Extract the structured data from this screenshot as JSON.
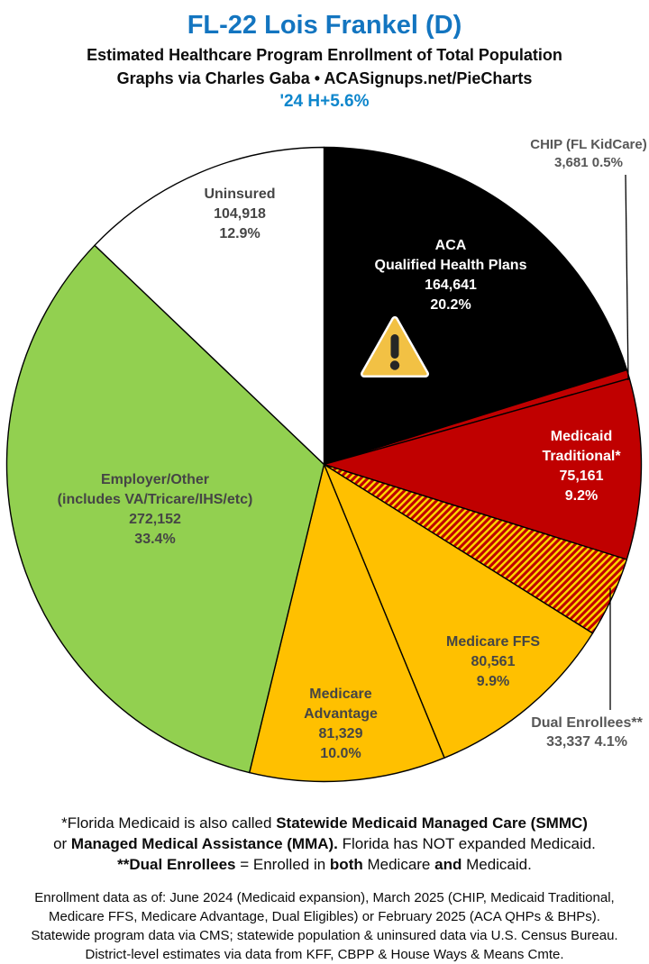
{
  "header": {
    "title": "FL-22 Lois Frankel (D)",
    "subtitle": "Estimated Healthcare Program Enrollment of Total Population",
    "credit": "Graphs via Charles Gaba   •   ACASignups.net/PieCharts",
    "trend": "'24 H+5.6%",
    "title_color": "#1375C0",
    "trend_color": "#0E86CC"
  },
  "chart_data": {
    "type": "pie",
    "title": "Estimated Healthcare Program Enrollment of Total Population",
    "direction": "clockwise",
    "start_angle_deg": 0,
    "total": 815780,
    "slices": [
      {
        "name": "ACA Qualified Health Plans",
        "value": 164641,
        "pct": 20.2,
        "color": "#000000",
        "display_lines": [
          "ACA",
          "Qualified Health Plans",
          "164,641",
          "20.2%"
        ],
        "label_color": "#ffffff"
      },
      {
        "name": "CHIP (FL KidCare)",
        "value": 3681,
        "pct": 0.5,
        "color": "#C00000",
        "label_outside": true,
        "display_lines": [
          "CHIP (FL KidCare)",
          "3,681 0.5%"
        ],
        "label_color": "#575757"
      },
      {
        "name": "Medicaid Traditional*",
        "value": 75161,
        "pct": 9.2,
        "color": "#C00000",
        "display_lines": [
          "Medicaid",
          "Traditional*",
          "75,161",
          "9.2%"
        ],
        "label_color": "#ffffff"
      },
      {
        "name": "Dual Enrollees**",
        "value": 33337,
        "pct": 4.1,
        "color": "hatch",
        "pattern": {
          "background": "#C00000",
          "stripe": "#FFD800",
          "angle_deg": -45
        },
        "label_outside": true,
        "display_lines": [
          "Dual Enrollees**",
          "33,337 4.1%"
        ],
        "label_color": "#575757"
      },
      {
        "name": "Medicare FFS",
        "value": 80561,
        "pct": 9.9,
        "color": "#FFC000",
        "display_lines": [
          "Medicare FFS",
          "80,561",
          "9.9%"
        ],
        "label_color": "#454545"
      },
      {
        "name": "Medicare Advantage",
        "value": 81329,
        "pct": 10.0,
        "color": "#FFC000",
        "display_lines": [
          "Medicare",
          "Advantage",
          "81,329",
          "10.0%"
        ],
        "label_color": "#454545"
      },
      {
        "name": "Employer/Other (includes VA/Tricare/IHS/etc)",
        "value": 272152,
        "pct": 33.4,
        "color": "#92D050",
        "display_lines": [
          "Employer/Other",
          "(includes VA/Tricare/IHS/etc)",
          "272,152",
          "33.4%"
        ],
        "label_color": "#454545"
      },
      {
        "name": "Uninsured",
        "value": 104918,
        "pct": 12.9,
        "color": "#FFFFFF",
        "display_lines": [
          "Uninsured",
          "104,918",
          "12.9%"
        ],
        "label_color": "#454545"
      }
    ],
    "border_color": "#000000"
  },
  "icons": {
    "aca_warning": "warning-triangle-icon",
    "warning_fill": "#F2C144",
    "warning_border": "#FFFFFF",
    "warning_glyph": "#262626"
  },
  "footnotes": {
    "medicaid_note": [
      [
        {
          "t": "*Florida Medicaid is also called ",
          "b": false
        },
        {
          "t": "Statewide Medicaid Managed Care (SMMC)",
          "b": true
        }
      ],
      [
        {
          "t": "or ",
          "b": false
        },
        {
          "t": "Managed Medical Assistance (MMA).",
          "b": true
        },
        {
          "t": " Florida has NOT expanded Medicaid.",
          "b": false
        }
      ],
      [
        {
          "t": "**Dual Enrollees",
          "b": true
        },
        {
          "t": " = Enrolled in ",
          "b": false
        },
        {
          "t": "both",
          "b": true
        },
        {
          "t": " Medicare ",
          "b": false
        },
        {
          "t": "and",
          "b": true
        },
        {
          "t": " Medicaid.",
          "b": false
        }
      ]
    ],
    "sources": [
      "Enrollment data as of: June 2024 (Medicaid expansion), March 2025 (CHIP, Medicaid Traditional,",
      "Medicare FFS, Medicare Advantage, Dual Eligibles) or February 2025 (ACA QHPs & BHPs).",
      "Statewide program data via CMS; statewide population & uninsured data via U.S. Census Bureau.",
      "District-level estimates via data from KFF, CBPP & House Ways & Means Cmte."
    ]
  }
}
